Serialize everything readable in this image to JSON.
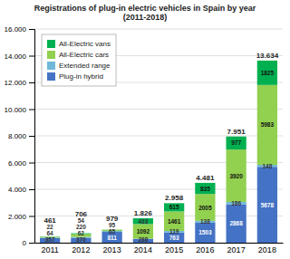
{
  "chart_data": {
    "type": "bar",
    "stacked": true,
    "title": "Registrations of plug-in electric vehicles in Spain by year\n(2011-2018)",
    "categories": [
      "2011",
      "2012",
      "2013",
      "2014",
      "2015",
      "2016",
      "2017",
      "2018"
    ],
    "series": [
      {
        "name": "Plug-in hybrid",
        "color": "#4472C4",
        "values": [
          357,
          370,
          811,
          288,
          763,
          1503,
          2868,
          5678
        ],
        "value_labels": [
          "357",
          "370",
          "811",
          "288",
          "763",
          "1503",
          "2868",
          "5678"
        ]
      },
      {
        "name": "Extended range",
        "color": "#70B8D8",
        "values": [
          18,
          62,
          65,
          13,
          119,
          138,
          186,
          148
        ],
        "value_labels": [
          null,
          "62",
          "65",
          null,
          "119",
          "138",
          "186",
          "148"
        ]
      },
      {
        "name": "All-Electric cars",
        "color": "#92D050",
        "values": [
          64,
          220,
          95,
          1092,
          1461,
          2005,
          3920,
          5983
        ],
        "value_labels": [
          "64",
          "220",
          "95",
          "1092",
          "1461",
          "2005",
          "3920",
          "5983"
        ]
      },
      {
        "name": "All-Electric vans",
        "color": "#00B050",
        "values": [
          22,
          54,
          8,
          433,
          615,
          835,
          977,
          1825
        ],
        "value_labels": [
          "22",
          "54",
          null,
          "433",
          "615",
          "835",
          "977",
          "1825"
        ]
      }
    ],
    "totals": {
      "values": [
        461,
        706,
        979,
        1826,
        2958,
        4481,
        7951,
        13634
      ],
      "value_labels": [
        "461",
        "706",
        "979",
        "1.826",
        "2.958",
        "4.481",
        "7.951",
        "13.634"
      ]
    },
    "ylim": [
      0,
      16000
    ],
    "yticks": [
      0,
      {
        "value": 2000,
        "label": "2.000"
      },
      {
        "value": 4000,
        "label": "4.000"
      },
      {
        "value": 6000,
        "label": "6.000"
      },
      {
        "value": 8000,
        "label": "8.000"
      },
      {
        "value": 10000,
        "label": "10.000"
      },
      {
        "value": 12000,
        "label": "12.000"
      },
      {
        "value": 14000,
        "label": "14.000"
      },
      {
        "value": 16000,
        "label": "16.000"
      }
    ],
    "grid": true,
    "legend": "upper left",
    "data_labels": true
  }
}
